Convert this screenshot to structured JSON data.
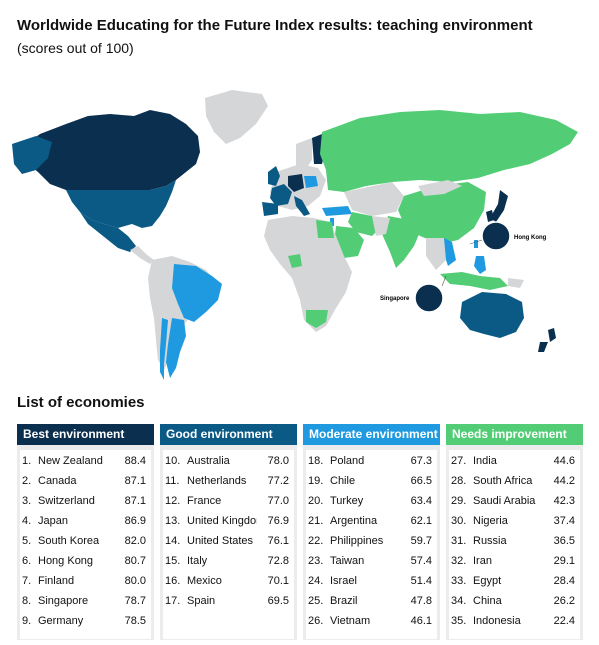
{
  "title": "Worldwide Educating for the Future Index results: teaching environment",
  "subtitle": "(scores out of 100)",
  "map_callouts": {
    "hong_kong": "Hong Kong",
    "singapore": "Singapore"
  },
  "colors": {
    "best": "#0b2f4e",
    "good": "#0b5a86",
    "moderate": "#1f9ae0",
    "needs": "#52cd76",
    "no_data": "#d5d6d8"
  },
  "list_heading": "List of economies",
  "categories": [
    {
      "label": "Best environment",
      "color": "#0b2f4e",
      "items": [
        {
          "rank": "1.",
          "name": "New Zealand",
          "score": "88.4"
        },
        {
          "rank": "2.",
          "name": "Canada",
          "score": "87.1"
        },
        {
          "rank": "3.",
          "name": "Switzerland",
          "score": "87.1"
        },
        {
          "rank": "4.",
          "name": "Japan",
          "score": "86.9"
        },
        {
          "rank": "5.",
          "name": "South Korea",
          "score": "82.0"
        },
        {
          "rank": "6.",
          "name": "Hong Kong",
          "score": "80.7"
        },
        {
          "rank": "7.",
          "name": "Finland",
          "score": "80.0"
        },
        {
          "rank": "8.",
          "name": "Singapore",
          "score": "78.7"
        },
        {
          "rank": "9.",
          "name": "Germany",
          "score": "78.5"
        }
      ]
    },
    {
      "label": "Good environment",
      "color": "#0b5a86",
      "items": [
        {
          "rank": "10.",
          "name": "Australia",
          "score": "78.0"
        },
        {
          "rank": "11.",
          "name": "Netherlands",
          "score": "77.2"
        },
        {
          "rank": "12.",
          "name": "France",
          "score": "77.0"
        },
        {
          "rank": "13.",
          "name": "United Kingdom",
          "score": "76.9"
        },
        {
          "rank": "14.",
          "name": "United States",
          "score": "76.1"
        },
        {
          "rank": "15.",
          "name": "Italy",
          "score": "72.8"
        },
        {
          "rank": "16.",
          "name": "Mexico",
          "score": "70.1"
        },
        {
          "rank": "17.",
          "name": "Spain",
          "score": "69.5"
        }
      ]
    },
    {
      "label": "Moderate environment",
      "color": "#1f9ae0",
      "items": [
        {
          "rank": "18.",
          "name": "Poland",
          "score": "67.3"
        },
        {
          "rank": "19.",
          "name": "Chile",
          "score": "66.5"
        },
        {
          "rank": "20.",
          "name": "Turkey",
          "score": "63.4"
        },
        {
          "rank": "21.",
          "name": "Argentina",
          "score": "62.1"
        },
        {
          "rank": "22.",
          "name": "Philippines",
          "score": "59.7"
        },
        {
          "rank": "23.",
          "name": "Taiwan",
          "score": "57.4"
        },
        {
          "rank": "24.",
          "name": "Israel",
          "score": "51.4"
        },
        {
          "rank": "25.",
          "name": "Brazil",
          "score": "47.8"
        },
        {
          "rank": "26.",
          "name": "Vietnam",
          "score": "46.1"
        }
      ]
    },
    {
      "label": "Needs improvement",
      "color": "#52cd76",
      "items": [
        {
          "rank": "27.",
          "name": "India",
          "score": "44.6"
        },
        {
          "rank": "28.",
          "name": "South Africa",
          "score": "44.2"
        },
        {
          "rank": "29.",
          "name": "Saudi Arabia",
          "score": "42.3"
        },
        {
          "rank": "30.",
          "name": "Nigeria",
          "score": "37.4"
        },
        {
          "rank": "31.",
          "name": "Russia",
          "score": "36.5"
        },
        {
          "rank": "32.",
          "name": "Iran",
          "score": "29.1"
        },
        {
          "rank": "33.",
          "name": "Egypt",
          "score": "28.4"
        },
        {
          "rank": "34.",
          "name": "China",
          "score": "26.2"
        },
        {
          "rank": "35.",
          "name": "Indonesia",
          "score": "22.4"
        }
      ]
    }
  ]
}
